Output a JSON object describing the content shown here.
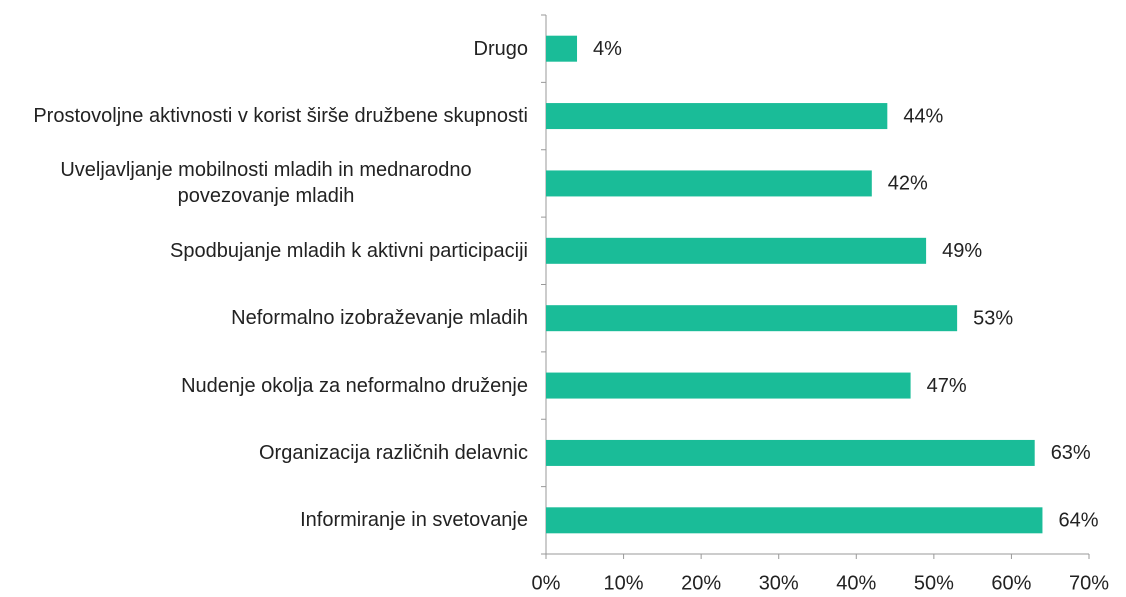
{
  "chart_data": {
    "type": "bar",
    "orientation": "horizontal",
    "categories": [
      "Drugo",
      "Prostovoljne aktivnosti v korist širše družbene skupnosti",
      "Uveljavljanje mobilnosti mladih in mednarodno povezovanje mladih",
      "Spodbujanje mladih k aktivni participaciji",
      "Neformalno izobraževanje mladih",
      "Nudenje okolja za neformalno druženje",
      "Organizacija različnih delavnic",
      "Informiranje in svetovanje"
    ],
    "values": [
      4,
      44,
      42,
      49,
      53,
      47,
      63,
      64
    ],
    "value_labels": [
      "4%",
      "44%",
      "42%",
      "49%",
      "53%",
      "47%",
      "63%",
      "64%"
    ],
    "color": "#1abc98",
    "xlim": [
      0,
      70
    ],
    "xticks": [
      {
        "value": 0,
        "label": "0%"
      },
      {
        "value": 10,
        "label": "10%"
      },
      {
        "value": 20,
        "label": "20%"
      },
      {
        "value": 30,
        "label": "30%"
      },
      {
        "value": 40,
        "label": "40%"
      },
      {
        "value": 50,
        "label": "50%"
      },
      {
        "value": 60,
        "label": "60%"
      },
      {
        "value": 70,
        "label": "70%"
      }
    ],
    "grid": false
  }
}
